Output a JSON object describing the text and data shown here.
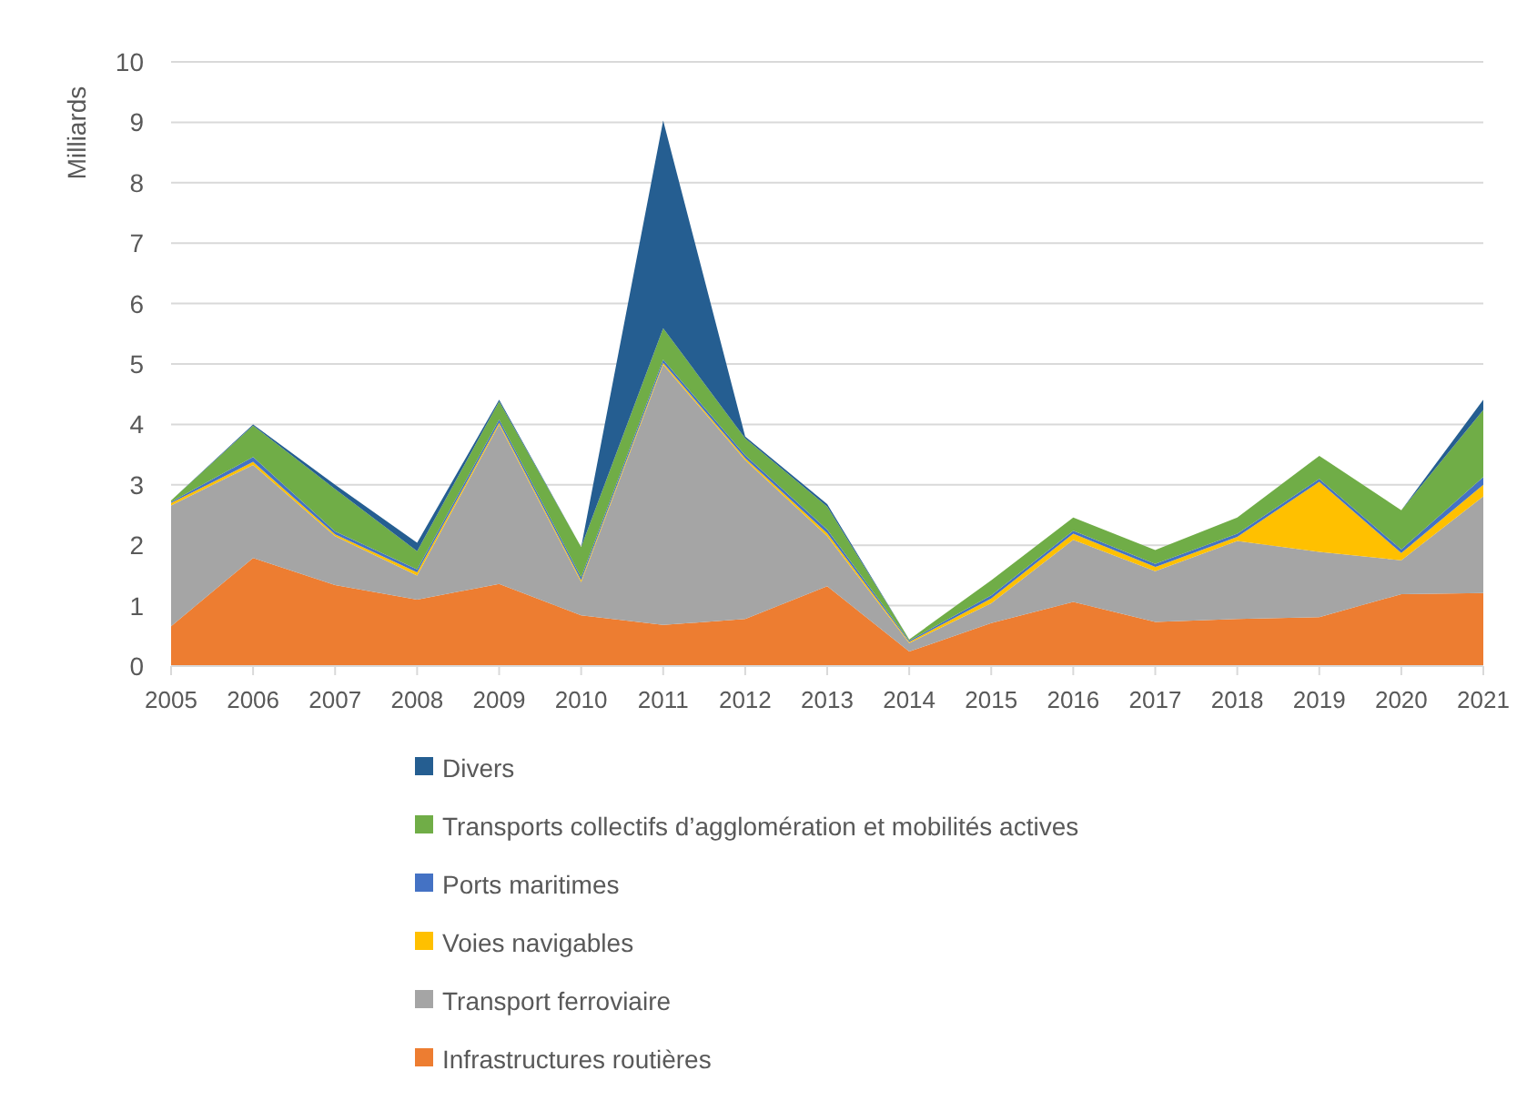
{
  "chart_data": {
    "type": "area",
    "stacked": true,
    "ylabel": "Milliards",
    "categories": [
      "2005",
      "2006",
      "2007",
      "2008",
      "2009",
      "2010",
      "2011",
      "2012",
      "2013",
      "2014",
      "2015",
      "2016",
      "2017",
      "2018",
      "2019",
      "2020",
      "2021"
    ],
    "series": [
      {
        "name": "Infrastructures routières",
        "color": "#ed7d31",
        "values": [
          0.66,
          1.79,
          1.34,
          1.1,
          1.36,
          0.84,
          0.68,
          0.78,
          1.32,
          0.24,
          0.71,
          1.06,
          0.73,
          0.78,
          0.81,
          1.19,
          1.21
        ]
      },
      {
        "name": "Transport ferroviaire",
        "color": "#a5a5a5",
        "values": [
          2.0,
          1.54,
          0.81,
          0.4,
          2.64,
          0.55,
          4.31,
          2.63,
          0.83,
          0.14,
          0.33,
          1.03,
          0.84,
          1.29,
          1.08,
          0.56,
          1.6
        ]
      },
      {
        "name": "Voies navigables",
        "color": "#ffc000",
        "values": [
          0.04,
          0.05,
          0.03,
          0.05,
          0.03,
          0.03,
          0.03,
          0.03,
          0.05,
          0.02,
          0.08,
          0.1,
          0.07,
          0.07,
          1.16,
          0.12,
          0.19
        ]
      },
      {
        "name": "Ports maritimes",
        "color": "#4472c4",
        "values": [
          0.02,
          0.08,
          0.05,
          0.05,
          0.05,
          0.05,
          0.05,
          0.05,
          0.06,
          0.02,
          0.05,
          0.05,
          0.05,
          0.05,
          0.05,
          0.06,
          0.13
        ]
      },
      {
        "name": "Transports collectifs d’agglomération et mobilités actives",
        "color": "#70ad47",
        "values": [
          0.02,
          0.52,
          0.7,
          0.3,
          0.3,
          0.5,
          0.52,
          0.28,
          0.38,
          0.02,
          0.25,
          0.22,
          0.23,
          0.27,
          0.38,
          0.65,
          1.11
        ]
      },
      {
        "name": "Divers",
        "color": "#255e91",
        "values": [
          0,
          0.02,
          0.07,
          0.14,
          0.03,
          0,
          3.44,
          0.03,
          0.04,
          0,
          0,
          0,
          0,
          0,
          0,
          0,
          0.17
        ]
      }
    ],
    "ylim": [
      0,
      10
    ],
    "yticks": [
      0,
      1,
      2,
      3,
      4,
      5,
      6,
      7,
      8,
      9,
      10
    ],
    "grid": "y",
    "legend": "bottom"
  }
}
